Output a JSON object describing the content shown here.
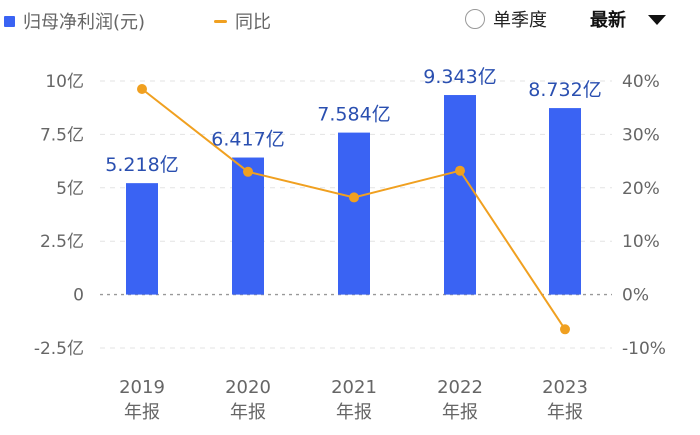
{
  "legend": {
    "bar_label": "归母净利润(元)",
    "line_label": "同比"
  },
  "controls": {
    "radio_label": "单季度",
    "sort_label": "最新"
  },
  "colors": {
    "bar": "#3a63f3",
    "line": "#f0a020",
    "data_label": "#2a4fb0"
  },
  "chart_data": {
    "type": "bar",
    "categories": [
      {
        "year": "2019",
        "period": "年报"
      },
      {
        "year": "2020",
        "period": "年报"
      },
      {
        "year": "2021",
        "period": "年报"
      },
      {
        "year": "2022",
        "period": "年报"
      },
      {
        "year": "2023",
        "period": "年报"
      }
    ],
    "series": [
      {
        "name": "归母净利润(元)",
        "axis": "left",
        "type": "bar",
        "values": [
          5.218,
          6.417,
          7.584,
          9.343,
          8.732
        ],
        "labels": [
          "5.218亿",
          "6.417亿",
          "7.584亿",
          "9.343亿",
          "8.732亿"
        ]
      },
      {
        "name": "同比",
        "axis": "right",
        "type": "line",
        "values": [
          38.5,
          23.0,
          18.2,
          23.2,
          -6.5
        ]
      }
    ],
    "y_left": {
      "range": [
        -2.5,
        10
      ],
      "ticks": [
        10,
        7.5,
        5,
        2.5,
        0,
        -2.5
      ],
      "tick_labels": [
        "10亿",
        "7.5亿",
        "5亿",
        "2.5亿",
        "0",
        "-2.5亿"
      ]
    },
    "y_right": {
      "range": [
        -10,
        40
      ],
      "ticks": [
        40,
        30,
        20,
        10,
        0,
        -10
      ],
      "tick_labels": [
        "40%",
        "30%",
        "20%",
        "10%",
        "0%",
        "-10%"
      ]
    },
    "grid": true
  }
}
